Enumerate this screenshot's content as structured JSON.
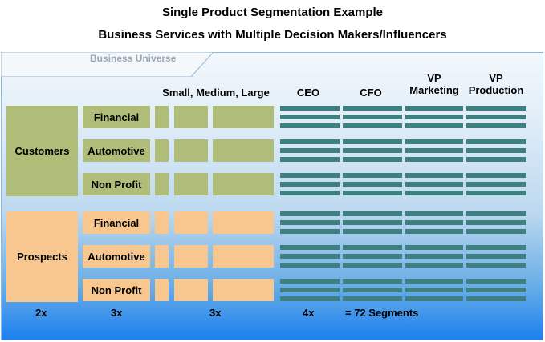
{
  "title": "Single Product Segmentation Example",
  "subtitle": "Business Services with Multiple Decision Makers/Influencers",
  "universe_label": "Business Universe",
  "columns": {
    "size": "Small, Medium, Large",
    "ceo": "CEO",
    "cfo": "CFO",
    "vp_marketing": "VP Marketing",
    "vp_production": "VP Production"
  },
  "groups": [
    {
      "label": "Customers",
      "color": "#afbd78",
      "rows": [
        "Financial",
        "Automotive",
        "Non Profit"
      ]
    },
    {
      "label": "Prospects",
      "color": "#f8c78f",
      "rows": [
        "Financial",
        "Automotive",
        "Non Profit"
      ]
    }
  ],
  "bar_color": "#3e8080",
  "counts": {
    "groups": "2x",
    "industries": "3x",
    "sizes": "3x",
    "roles": "4x",
    "total": "= 72 Segments"
  }
}
